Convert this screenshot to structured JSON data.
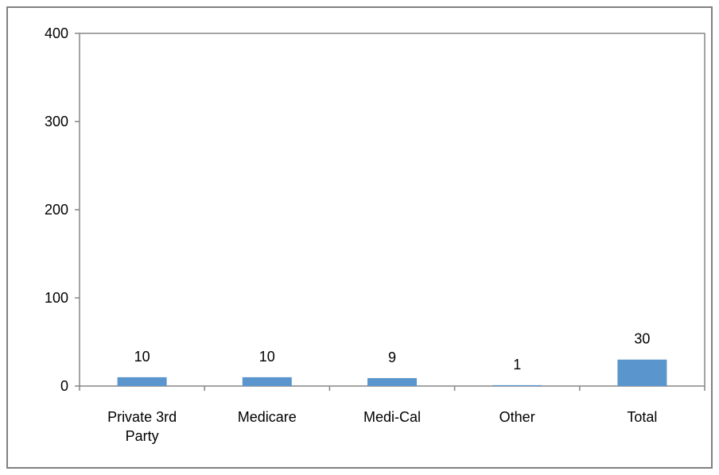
{
  "chart_data": {
    "type": "bar",
    "categories": [
      [
        "Private 3rd",
        "Party"
      ],
      [
        "Medicare"
      ],
      [
        "Medi-Cal"
      ],
      [
        "Other"
      ],
      [
        "Total"
      ]
    ],
    "values": [
      10,
      10,
      9,
      1,
      30
    ],
    "data_labels": [
      "10",
      "10",
      "9",
      "1",
      "30"
    ],
    "yticks": [
      "0",
      "100",
      "200",
      "300",
      "400"
    ],
    "ylim": [
      0,
      400
    ],
    "grid": false,
    "legend": "none",
    "bar_color": "#5B95CD",
    "axis_color": "#868686"
  }
}
